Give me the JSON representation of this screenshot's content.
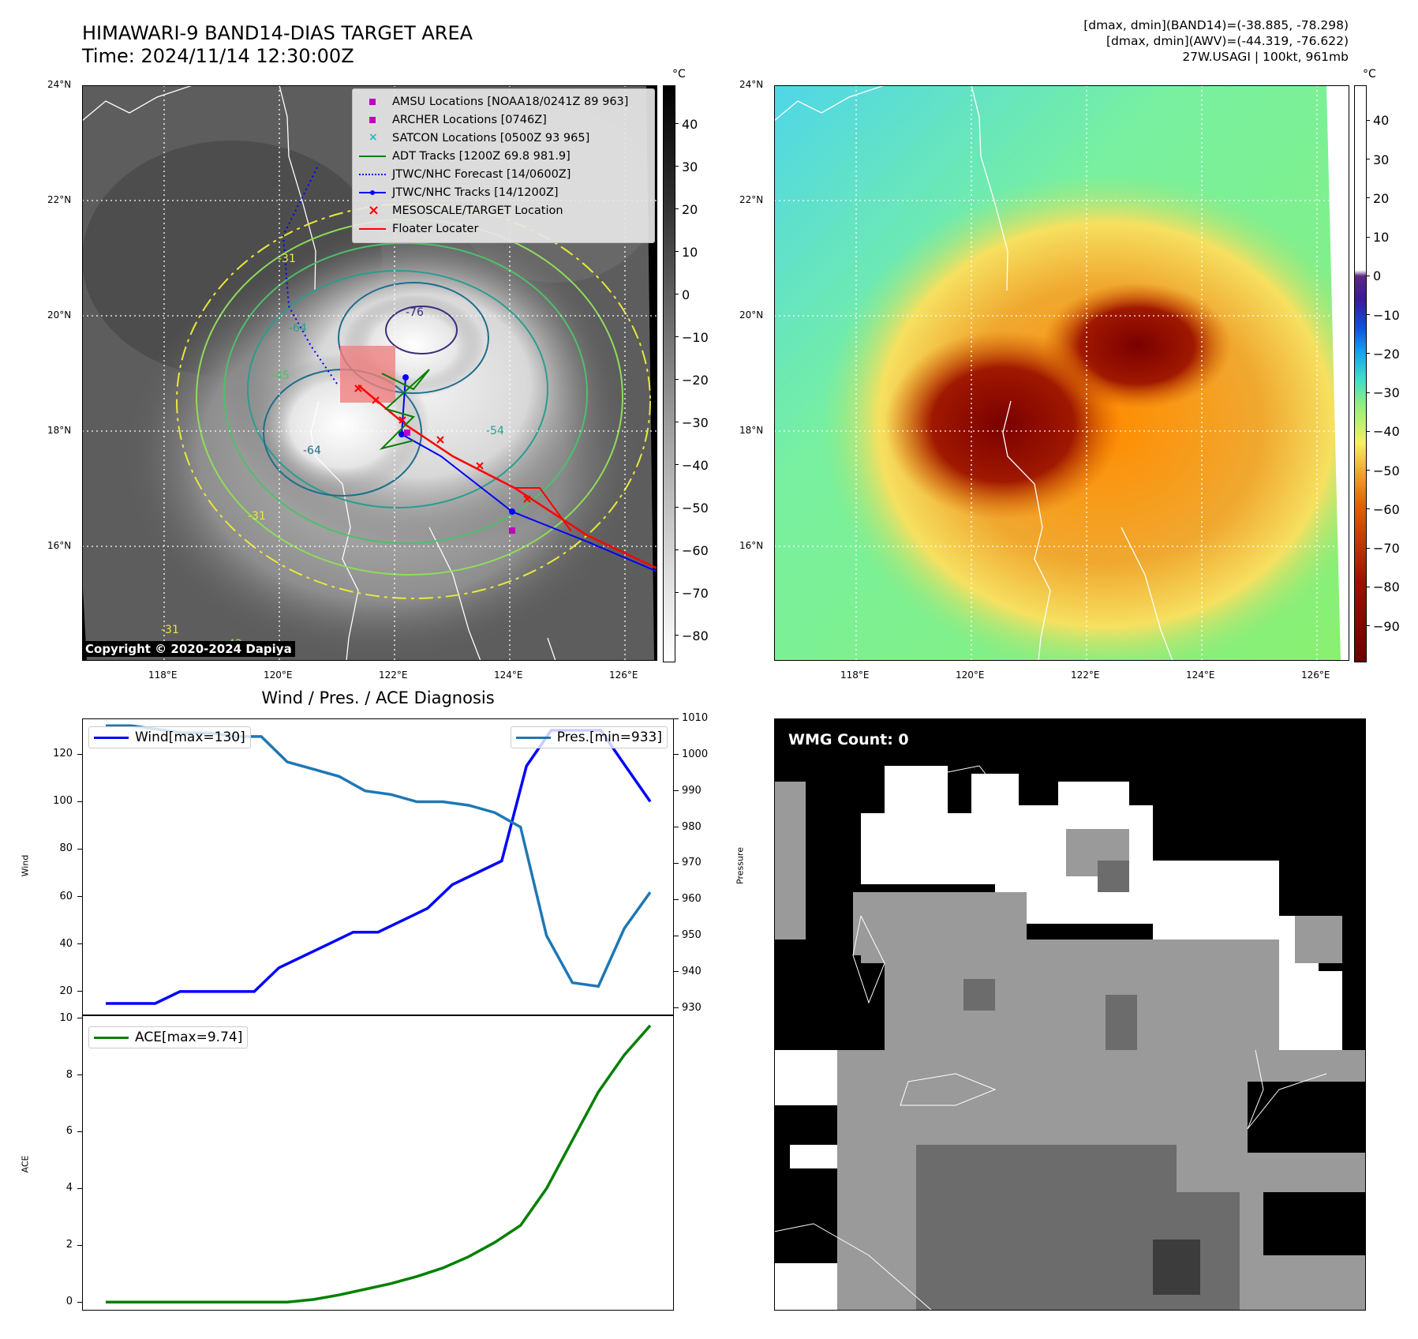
{
  "header": {
    "title_line1": "HIMAWARI-9 BAND14-DIAS TARGET AREA",
    "title_line2": "Time: 2024/11/14 12:30:00Z",
    "right_line1": "[dmax, dmin](BAND14)=(-38.885, -78.298)",
    "right_line2": "[dmax, dmin](AWV)=(-44.319, -76.622)",
    "right_line3": "27W.USAGI | 100kt, 961mb"
  },
  "maps": {
    "lat_labels": [
      "24°N",
      "22°N",
      "20°N",
      "18°N",
      "16°N"
    ],
    "lon_labels": [
      "118°E",
      "120°E",
      "122°E",
      "124°E",
      "126°E"
    ],
    "colorbar_unit": "°C",
    "left_colorbar_ticks": [
      "40",
      "30",
      "20",
      "10",
      "0",
      "−10",
      "−20",
      "−30",
      "−40",
      "−50",
      "−60",
      "−70",
      "−80"
    ],
    "right_colorbar_ticks": [
      "40",
      "30",
      "20",
      "10",
      "0",
      "−10",
      "−20",
      "−30",
      "−40",
      "−50",
      "−60",
      "−70",
      "−80",
      "−90"
    ],
    "copyright": "Copyright © 2020-2024 Dapiya",
    "contour_labels": [
      "-76",
      "-64",
      "-54",
      "-31",
      "-42",
      "-31",
      "-64",
      "-45",
      "-31"
    ],
    "legend": [
      {
        "label": "AMSU Locations [NOAA18/0241Z 89 963]",
        "kind": "square",
        "color": "#c000c0"
      },
      {
        "label": "ARCHER Locations [0746Z]",
        "kind": "square",
        "color": "#c000c0"
      },
      {
        "label": "SATCON Locations [0500Z 93 965]",
        "kind": "x-small",
        "color": "#17becf"
      },
      {
        "label": "ADT Tracks [1200Z 69.8 981.9]",
        "kind": "line",
        "color": "#008000"
      },
      {
        "label": "JTWC/NHC Forecast [14/0600Z]",
        "kind": "dotted",
        "color": "#0000ff"
      },
      {
        "label": "JTWC/NHC Tracks [14/1200Z]",
        "kind": "line-dot",
        "color": "#0000ff"
      },
      {
        "label": "MESOSCALE/TARGET Location",
        "kind": "x",
        "color": "#ff0000"
      },
      {
        "label": "Floater Locater",
        "kind": "line",
        "color": "#ff0000"
      }
    ]
  },
  "diagnosis": {
    "title": "Wind / Pres. / ACE Diagnosis",
    "wind_ylabel": "Wind",
    "pressure_ylabel": "Pressure",
    "ace_ylabel": "ACE",
    "wind_legend": "Wind[max=130]",
    "pres_legend": "Pres.[min=933]",
    "ace_legend": "ACE[max=9.74]",
    "wind_ticks": [
      "120",
      "100",
      "80",
      "60",
      "40",
      "20"
    ],
    "pres_ticks": [
      "1010",
      "1000",
      "990",
      "980",
      "970",
      "960",
      "950",
      "940",
      "930"
    ],
    "ace_ticks": [
      "10",
      "8",
      "6",
      "4",
      "2",
      "0"
    ],
    "colors": {
      "wind": "#0000ff",
      "pressure": "#1f77b4",
      "ace": "#008000"
    }
  },
  "wmg": {
    "label": "WMG Count: 0"
  },
  "chart_data": [
    {
      "type": "line",
      "title": "Wind / Pres. / ACE Diagnosis",
      "ylabel": "Wind",
      "ylim": [
        10,
        135
      ],
      "series": [
        {
          "name": "Wind[max=130]",
          "values": [
            15,
            15,
            15,
            20,
            20,
            20,
            20,
            30,
            35,
            40,
            45,
            45,
            50,
            55,
            65,
            70,
            75,
            115,
            130,
            130,
            130,
            115,
            100
          ]
        }
      ]
    },
    {
      "type": "line",
      "ylabel": "Pressure",
      "ylim": [
        928,
        1010
      ],
      "series": [
        {
          "name": "Pres.[min=933]",
          "values": [
            1008,
            1008,
            1007,
            1006,
            1006,
            1005,
            1005,
            998,
            996,
            994,
            990,
            989,
            987,
            987,
            986,
            984,
            980,
            950,
            937,
            936,
            952,
            962
          ]
        }
      ]
    },
    {
      "type": "line",
      "ylabel": "ACE",
      "ylim": [
        -0.3,
        10.1
      ],
      "series": [
        {
          "name": "ACE[max=9.74]",
          "values": [
            0,
            0,
            0,
            0,
            0,
            0,
            0,
            0,
            0.09,
            0.25,
            0.45,
            0.65,
            0.9,
            1.2,
            1.6,
            2.1,
            2.7,
            4.0,
            5.7,
            7.4,
            8.7,
            9.74
          ]
        }
      ]
    }
  ]
}
